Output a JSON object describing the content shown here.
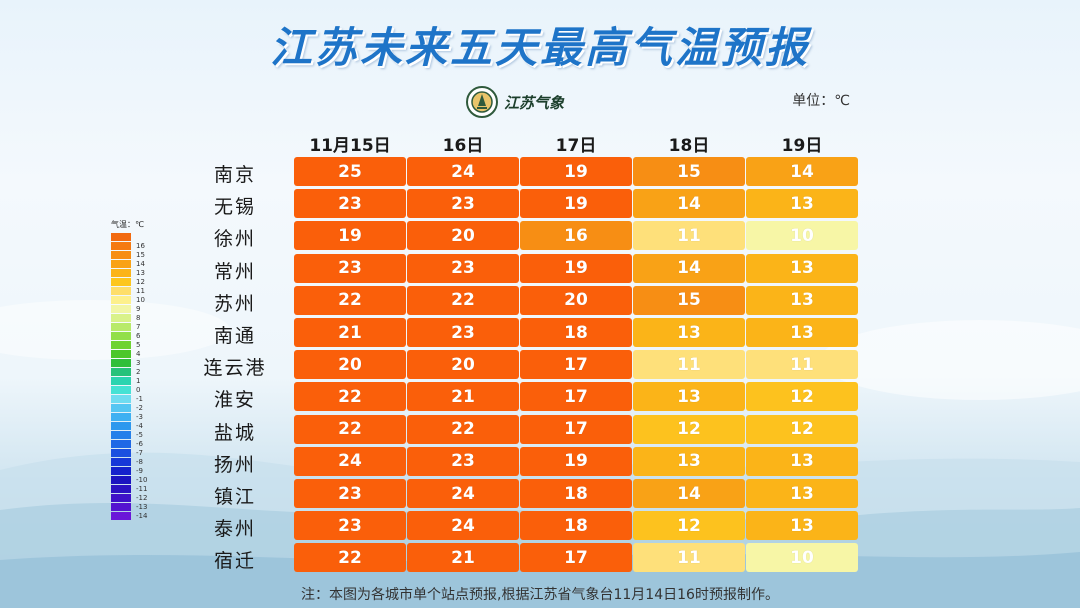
{
  "title": "江苏未来五天最高气温预报",
  "logo_text": "江苏气象",
  "unit_label": "单位：℃",
  "note": "注：本图为各城市单个站点预报,根据江苏省气象台11月14日16时预报制作。",
  "legend": {
    "title": "气温：℃",
    "levels": [
      {
        "label": "",
        "color": "#f26a10"
      },
      {
        "label": "16",
        "color": "#f57a12"
      },
      {
        "label": "15",
        "color": "#f78e14"
      },
      {
        "label": "14",
        "color": "#f9a216"
      },
      {
        "label": "13",
        "color": "#fbb418"
      },
      {
        "label": "12",
        "color": "#fdc61e"
      },
      {
        "label": "11",
        "color": "#fede6a"
      },
      {
        "label": "10",
        "color": "#fdf08c"
      },
      {
        "label": "9",
        "color": "#f2f6a6"
      },
      {
        "label": "8",
        "color": "#d9f28a"
      },
      {
        "label": "7",
        "color": "#b8ea6a"
      },
      {
        "label": "6",
        "color": "#92df4a"
      },
      {
        "label": "5",
        "color": "#6fd332"
      },
      {
        "label": "4",
        "color": "#4cc72a"
      },
      {
        "label": "3",
        "color": "#2fbf3a"
      },
      {
        "label": "2",
        "color": "#26c27a"
      },
      {
        "label": "1",
        "color": "#2bd4b0"
      },
      {
        "label": "0",
        "color": "#45e2d4"
      },
      {
        "label": "-1",
        "color": "#6fdcf0"
      },
      {
        "label": "-2",
        "color": "#55c6f2"
      },
      {
        "label": "-3",
        "color": "#3eb0f2"
      },
      {
        "label": "-4",
        "color": "#2d98ee"
      },
      {
        "label": "-5",
        "color": "#2580ea"
      },
      {
        "label": "-6",
        "color": "#1f68e6"
      },
      {
        "label": "-7",
        "color": "#1a50e0"
      },
      {
        "label": "-8",
        "color": "#1638d8"
      },
      {
        "label": "-9",
        "color": "#1422cc"
      },
      {
        "label": "-10",
        "color": "#1a14c0"
      },
      {
        "label": "-11",
        "color": "#2a12c2"
      },
      {
        "label": "-12",
        "color": "#3e12c8"
      },
      {
        "label": "-13",
        "color": "#5414d0"
      },
      {
        "label": "-14",
        "color": "#6a16d8"
      }
    ]
  },
  "chart_data": {
    "type": "table",
    "title": "江苏未来五天最高气温预报",
    "unit": "℃",
    "columns": [
      "11月15日",
      "16日",
      "17日",
      "18日",
      "19日"
    ],
    "rows": [
      {
        "city": "南京",
        "values": [
          25,
          24,
          19,
          15,
          14
        ]
      },
      {
        "city": "无锡",
        "values": [
          23,
          23,
          19,
          14,
          13
        ]
      },
      {
        "city": "徐州",
        "values": [
          19,
          20,
          16,
          11,
          10
        ]
      },
      {
        "city": "常州",
        "values": [
          23,
          23,
          19,
          14,
          13
        ]
      },
      {
        "city": "苏州",
        "values": [
          22,
          22,
          20,
          15,
          13
        ]
      },
      {
        "city": "南通",
        "values": [
          21,
          23,
          18,
          13,
          13
        ]
      },
      {
        "city": "连云港",
        "values": [
          20,
          20,
          17,
          11,
          11
        ]
      },
      {
        "city": "淮安",
        "values": [
          22,
          21,
          17,
          13,
          12
        ]
      },
      {
        "city": "盐城",
        "values": [
          22,
          22,
          17,
          12,
          12
        ]
      },
      {
        "city": "扬州",
        "values": [
          24,
          23,
          19,
          13,
          13
        ]
      },
      {
        "city": "镇江",
        "values": [
          23,
          24,
          18,
          14,
          13
        ]
      },
      {
        "city": "泰州",
        "values": [
          23,
          24,
          18,
          12,
          13
        ]
      },
      {
        "city": "宿迁",
        "values": [
          22,
          21,
          17,
          11,
          10
        ]
      }
    ]
  },
  "colors": {
    "title": "#1e74c8",
    "temp_17_plus": "#fa5f0a",
    "temp_15": "#f78e14",
    "temp_14": "#f9a216",
    "temp_13": "#fbb418",
    "temp_12": "#fdc21e",
    "temp_11": "#fee07a",
    "temp_10": "#f7f6a6"
  }
}
